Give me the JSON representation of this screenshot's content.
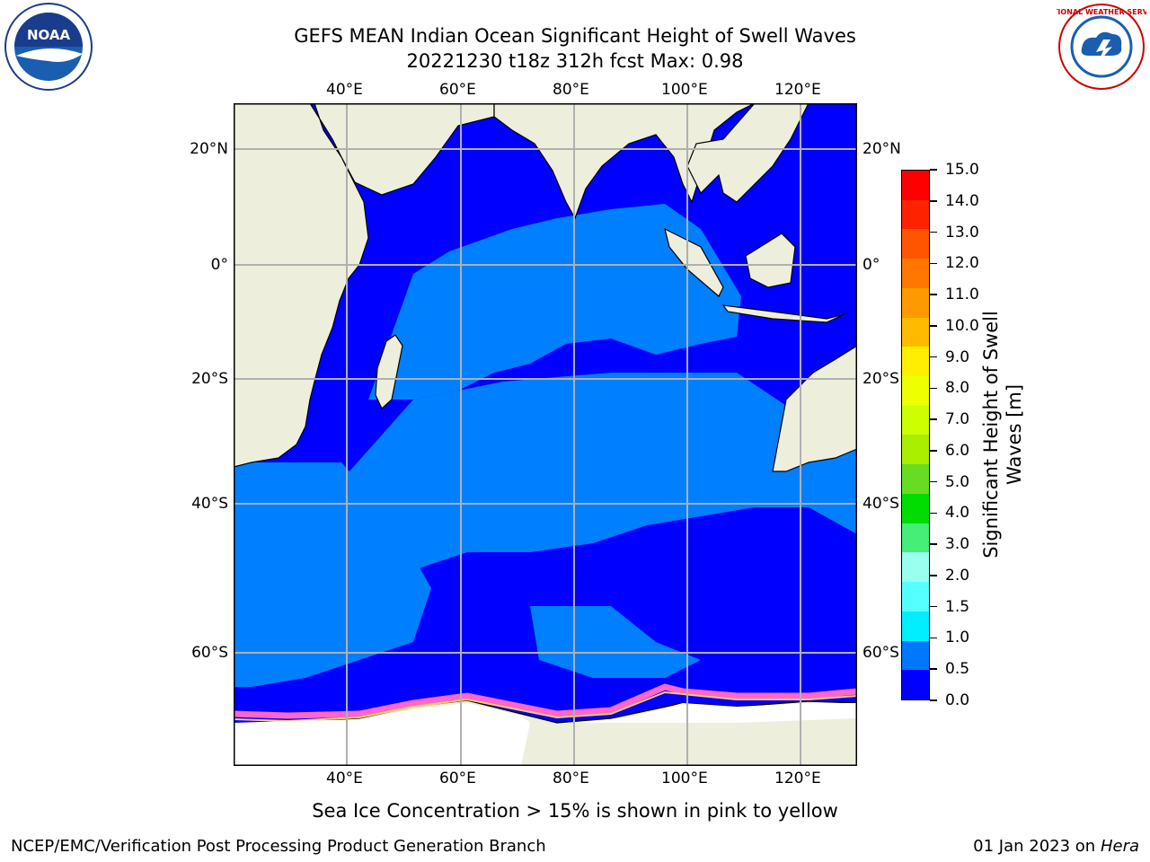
{
  "title_line1": "GEFS MEAN Indian Ocean Significant Height of Swell Waves",
  "title_line2": "20221230 t18z 312h fcst   Max: 0.98",
  "lon_labels": [
    "40°E",
    "60°E",
    "80°E",
    "100°E",
    "120°E"
  ],
  "lat_labels": [
    "20°N",
    "0°",
    "20°S",
    "40°S",
    "60°S"
  ],
  "colorbar": {
    "label_line1": "Significant Height of Swell",
    "label_line2": "Waves [m]",
    "ticks": [
      "15.0",
      "14.0",
      "13.0",
      "12.0",
      "11.0",
      "10.0",
      "9.0",
      "8.0",
      "7.0",
      "6.0",
      "5.0",
      "4.0",
      "3.0",
      "2.0",
      "1.5",
      "1.0",
      "0.5",
      "0.0"
    ],
    "colors_top_to_bottom": [
      "#ff0000",
      "#ff2200",
      "#ff5500",
      "#ff7700",
      "#ff9900",
      "#ffbb00",
      "#ffee00",
      "#eeff00",
      "#ccff00",
      "#aaee00",
      "#66dd22",
      "#00dd00",
      "#44ee77",
      "#99ffee",
      "#55ffff",
      "#00eeff",
      "#0077ff",
      "#0000ff"
    ]
  },
  "note": "Sea Ice Concentration > 15% is shown in pink to yellow",
  "footer_left": "NCEP/EMC/Verification Post Processing Product Generation Branch",
  "footer_right_prefix": "01 Jan 2023 on ",
  "footer_right_italic": "Hera",
  "logos": {
    "left": "NOAA",
    "right": "NATIONAL WEATHER SERVICE"
  },
  "map_colors": {
    "ocean_deep": "#0000ff",
    "ocean_mid": "#0080ff",
    "land": "#eeeedd",
    "ice": "#ff66cc",
    "grid": "#b0b0b0"
  }
}
